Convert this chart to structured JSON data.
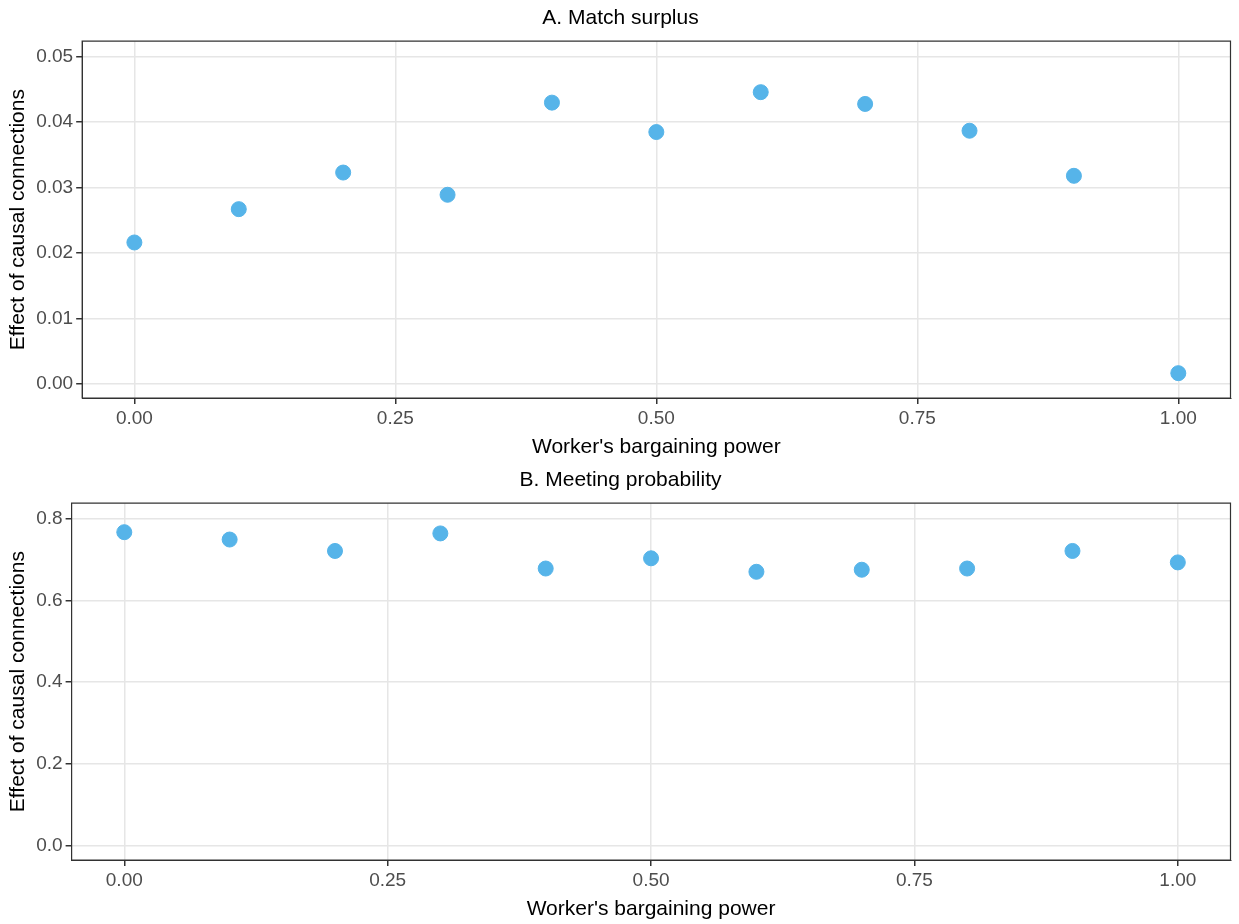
{
  "chart_data": [
    {
      "type": "scatter",
      "title": "A. Match surplus",
      "xlabel": "Worker's bargaining power",
      "ylabel": "Effect of causal connections",
      "x": [
        0,
        0.1,
        0.2,
        0.3,
        0.4,
        0.5,
        0.6,
        0.7,
        0.8,
        0.9,
        1.0
      ],
      "series": [
        {
          "color": "#56b4e9",
          "values": [
            0.0216,
            0.0267,
            0.0323,
            0.0289,
            0.043,
            0.0385,
            0.0446,
            0.0428,
            0.0387,
            0.0318,
            0.0016
          ]
        }
      ],
      "xlim": [
        -0.05,
        1.05
      ],
      "xticks": [
        {
          "value": 0,
          "label": "0.00"
        },
        {
          "value": 0.25,
          "label": "0.25"
        },
        {
          "value": 0.5,
          "label": "0.50"
        },
        {
          "value": 0.75,
          "label": "0.75"
        },
        {
          "value": 1,
          "label": "1.00"
        }
      ],
      "ylim": [
        -0.0022,
        0.0524
      ],
      "yticks": [
        {
          "value": 0,
          "label": "0.00"
        },
        {
          "value": 0.01,
          "label": "0.01"
        },
        {
          "value": 0.02,
          "label": "0.02"
        },
        {
          "value": 0.03,
          "label": "0.03"
        },
        {
          "value": 0.04,
          "label": "0.04"
        },
        {
          "value": 0.05,
          "label": "0.05"
        }
      ],
      "grid": true,
      "legend": false,
      "marker": "circle"
    },
    {
      "type": "scatter",
      "title": "B. Meeting probability",
      "xlabel": "Worker's bargaining power",
      "ylabel": "Effect of causal connections",
      "x": [
        0,
        0.1,
        0.2,
        0.3,
        0.4,
        0.5,
        0.6,
        0.7,
        0.8,
        0.9,
        1.0
      ],
      "series": [
        {
          "color": "#56b4e9",
          "values": [
            0.767,
            0.749,
            0.721,
            0.764,
            0.678,
            0.703,
            0.67,
            0.675,
            0.678,
            0.721,
            0.693
          ]
        }
      ],
      "xlim": [
        -0.05,
        1.05
      ],
      "xticks": [
        {
          "value": 0,
          "label": "0.00"
        },
        {
          "value": 0.25,
          "label": "0.25"
        },
        {
          "value": 0.5,
          "label": "0.50"
        },
        {
          "value": 0.75,
          "label": "0.75"
        },
        {
          "value": 1,
          "label": "1.00"
        }
      ],
      "ylim": [
        -0.036,
        0.838
      ],
      "yticks": [
        {
          "value": 0,
          "label": "0.0"
        },
        0.2,
        0.4,
        0.6,
        0.8
      ],
      "grid": true,
      "legend": false,
      "marker": "circle"
    }
  ]
}
